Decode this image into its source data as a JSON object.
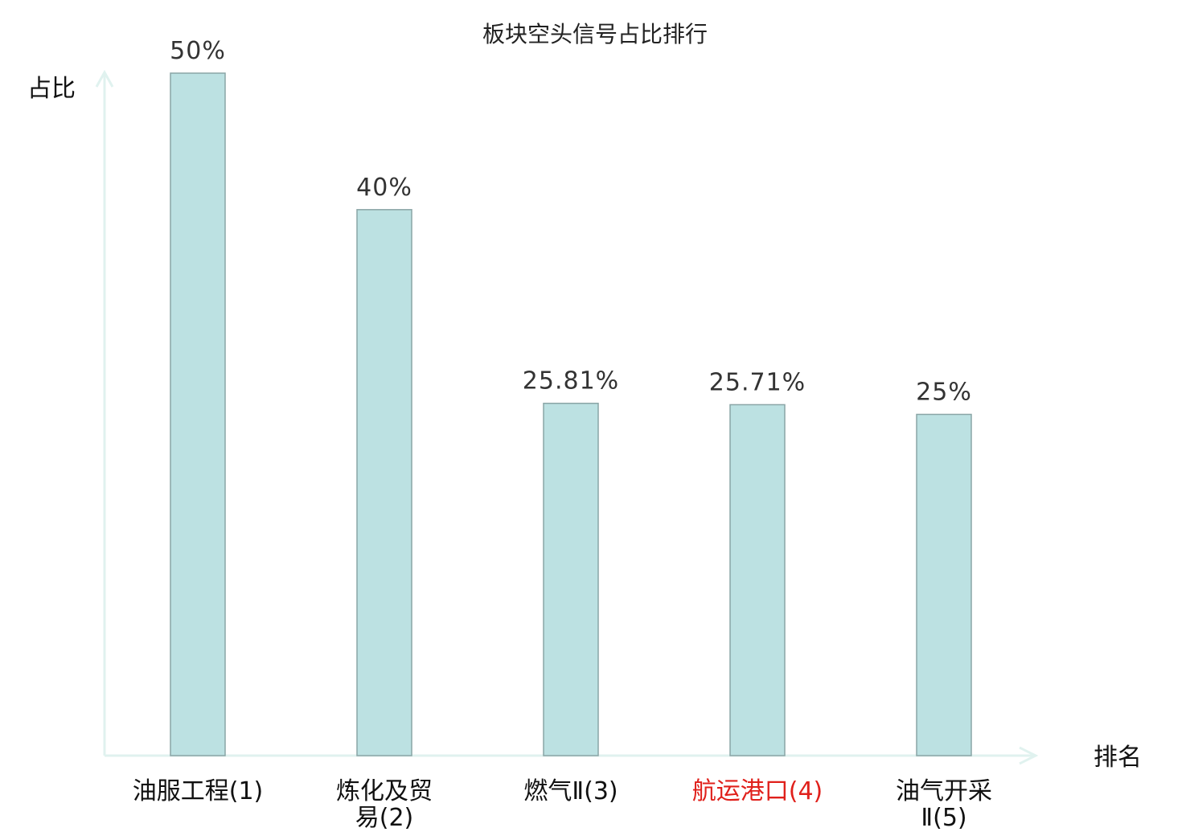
{
  "chart_data": {
    "type": "bar",
    "title": "板块空头信号占比排行",
    "ylabel": "占比",
    "xlabel": "排名",
    "ylim": [
      0,
      50
    ],
    "grid": false,
    "categories": [
      {
        "lines": [
          "油服工程(1)"
        ],
        "rank": 1
      },
      {
        "lines": [
          "炼化及贸",
          "易(2)"
        ],
        "rank": 2
      },
      {
        "lines": [
          "燃气Ⅱ(3)"
        ],
        "rank": 3
      },
      {
        "lines": [
          "航运港口(4)"
        ],
        "rank": 4,
        "highlight": true
      },
      {
        "lines": [
          "油气开采",
          "Ⅱ(5)"
        ],
        "rank": 5
      }
    ],
    "values": [
      50,
      40,
      25.81,
      25.71,
      25
    ],
    "value_labels": [
      "50%",
      "40%",
      "25.81%",
      "25.71%",
      "25%"
    ],
    "colors": {
      "bar_fill": "#bce1e2",
      "bar_stroke": "#8aa5a6",
      "axis": "#e0f2ef",
      "highlight_text": "#e0201b"
    }
  }
}
